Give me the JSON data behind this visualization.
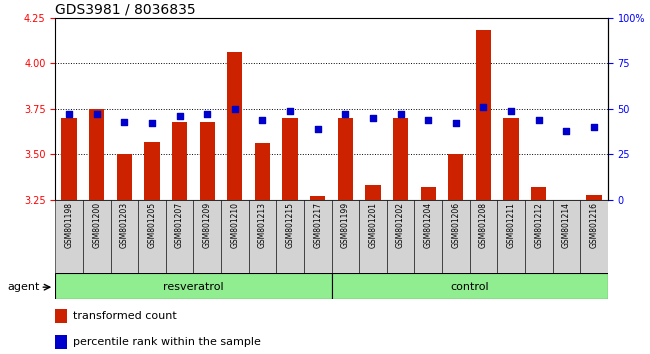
{
  "title": "GDS3981 / 8036835",
  "samples": [
    "GSM801198",
    "GSM801200",
    "GSM801203",
    "GSM801205",
    "GSM801207",
    "GSM801209",
    "GSM801210",
    "GSM801213",
    "GSM801215",
    "GSM801217",
    "GSM801199",
    "GSM801201",
    "GSM801202",
    "GSM801204",
    "GSM801206",
    "GSM801208",
    "GSM801211",
    "GSM801212",
    "GSM801214",
    "GSM801216"
  ],
  "bar_values": [
    3.7,
    3.75,
    3.5,
    3.57,
    3.68,
    3.68,
    4.06,
    3.56,
    3.7,
    3.27,
    3.7,
    3.33,
    3.7,
    3.32,
    3.5,
    4.18,
    3.7,
    3.32,
    3.25,
    3.28
  ],
  "percentile_values": [
    47,
    47,
    43,
    42,
    46,
    47,
    50,
    44,
    49,
    39,
    47,
    45,
    47,
    44,
    42,
    51,
    49,
    44,
    38,
    40
  ],
  "ylim_left": [
    3.25,
    4.25
  ],
  "ylim_right": [
    0,
    100
  ],
  "yticks_left": [
    3.25,
    3.5,
    3.75,
    4.0,
    4.25
  ],
  "yticks_right": [
    0,
    25,
    50,
    75,
    100
  ],
  "grid_lines": [
    3.5,
    3.75,
    4.0
  ],
  "bar_color": "#cc2200",
  "dot_color": "#0000cc",
  "bar_width": 0.55,
  "background_color": "#ffffff",
  "group_bg_color": "#90ee90",
  "cell_color": "#d3d3d3",
  "title_fontsize": 10,
  "axis_fontsize": 7,
  "label_fontsize": 8,
  "legend_fontsize": 8,
  "resveratrol_range": [
    0,
    10
  ],
  "control_range": [
    10,
    20
  ]
}
